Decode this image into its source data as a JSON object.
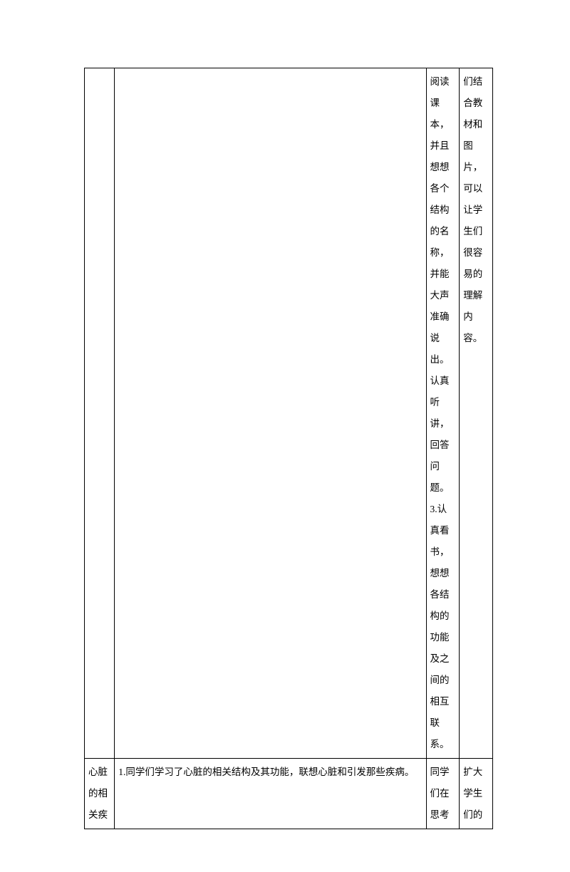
{
  "table": {
    "rows": [
      {
        "c1": "",
        "c2": "",
        "c3": "阅读课本，并且想想各个结构的名称，并能大声准确说出。认真听讲，回答问题。3.认真看书，想想各结构的功能及之间的相互联系。",
        "c4": "们结合教材和图片，可以让学生们很容易的理解内容。"
      },
      {
        "c1": "心脏的相关疾",
        "c2": "1.同学们学习了心脏的相关结构及其功能，联想心脏和引发那些疾病。",
        "c3": "同学们在思考",
        "c4": "扩大学生们的"
      }
    ]
  }
}
